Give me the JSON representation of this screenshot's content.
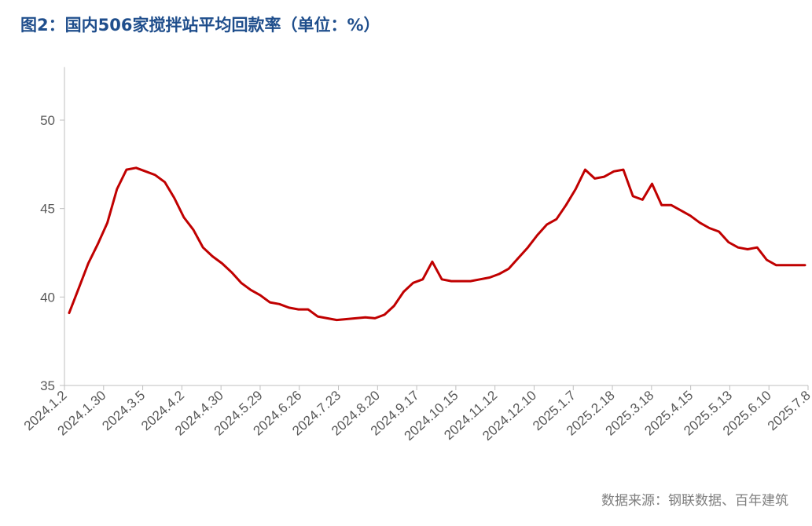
{
  "title": "图2：国内506家搅拌站平均回款率（单位：%）",
  "source": "数据来源：钢联数据、百年建筑",
  "chart_data": {
    "type": "line",
    "title": "图2：国内506家搅拌站平均回款率（单位：%）",
    "xlabel": "",
    "ylabel": "",
    "ylim": [
      35,
      53
    ],
    "yticks": [
      35,
      40,
      45,
      50
    ],
    "grid": false,
    "legend": "none",
    "line_color": "#c00000",
    "axis_color": "#bfbfbf",
    "x_tick_labels": [
      "2024.1.2",
      "2024.1.30",
      "2024.3.5",
      "2024.4.2",
      "2024.4.30",
      "2024.5.29",
      "2024.6.26",
      "2024.7.23",
      "2024.8.20",
      "2024.9.17",
      "2024.10.15",
      "2024.11.12",
      "2024.12.10",
      "2025.1.7",
      "2025.2.18",
      "2025.3.18",
      "2025.4.15",
      "2025.5.13",
      "2025.6.10",
      "2025.7.8"
    ],
    "series": [
      {
        "values": [
          39.1,
          40.5,
          41.9,
          43.0,
          44.2,
          46.1,
          47.2,
          47.3,
          47.1,
          46.9,
          46.5,
          45.6,
          44.5,
          43.8,
          42.8,
          42.3,
          41.9,
          41.4,
          40.8,
          40.4,
          40.1,
          39.7,
          39.6,
          39.4,
          39.3,
          39.3,
          38.9,
          38.8,
          38.7,
          38.75,
          38.8,
          38.85,
          38.8,
          39.0,
          39.5,
          40.3,
          40.8,
          41.0,
          42.0,
          41.0,
          40.9,
          40.9,
          40.9,
          41.0,
          41.1,
          41.3,
          41.6,
          42.2,
          42.8,
          43.5,
          44.1,
          44.4,
          45.2,
          46.1,
          47.2,
          46.7,
          46.8,
          47.1,
          47.2,
          45.7,
          45.5,
          46.4,
          45.2,
          45.2,
          44.9,
          44.6,
          44.2,
          43.9,
          43.7,
          43.1,
          42.8,
          42.7,
          42.8,
          42.1,
          41.8,
          41.8,
          41.8,
          41.8
        ]
      }
    ]
  }
}
